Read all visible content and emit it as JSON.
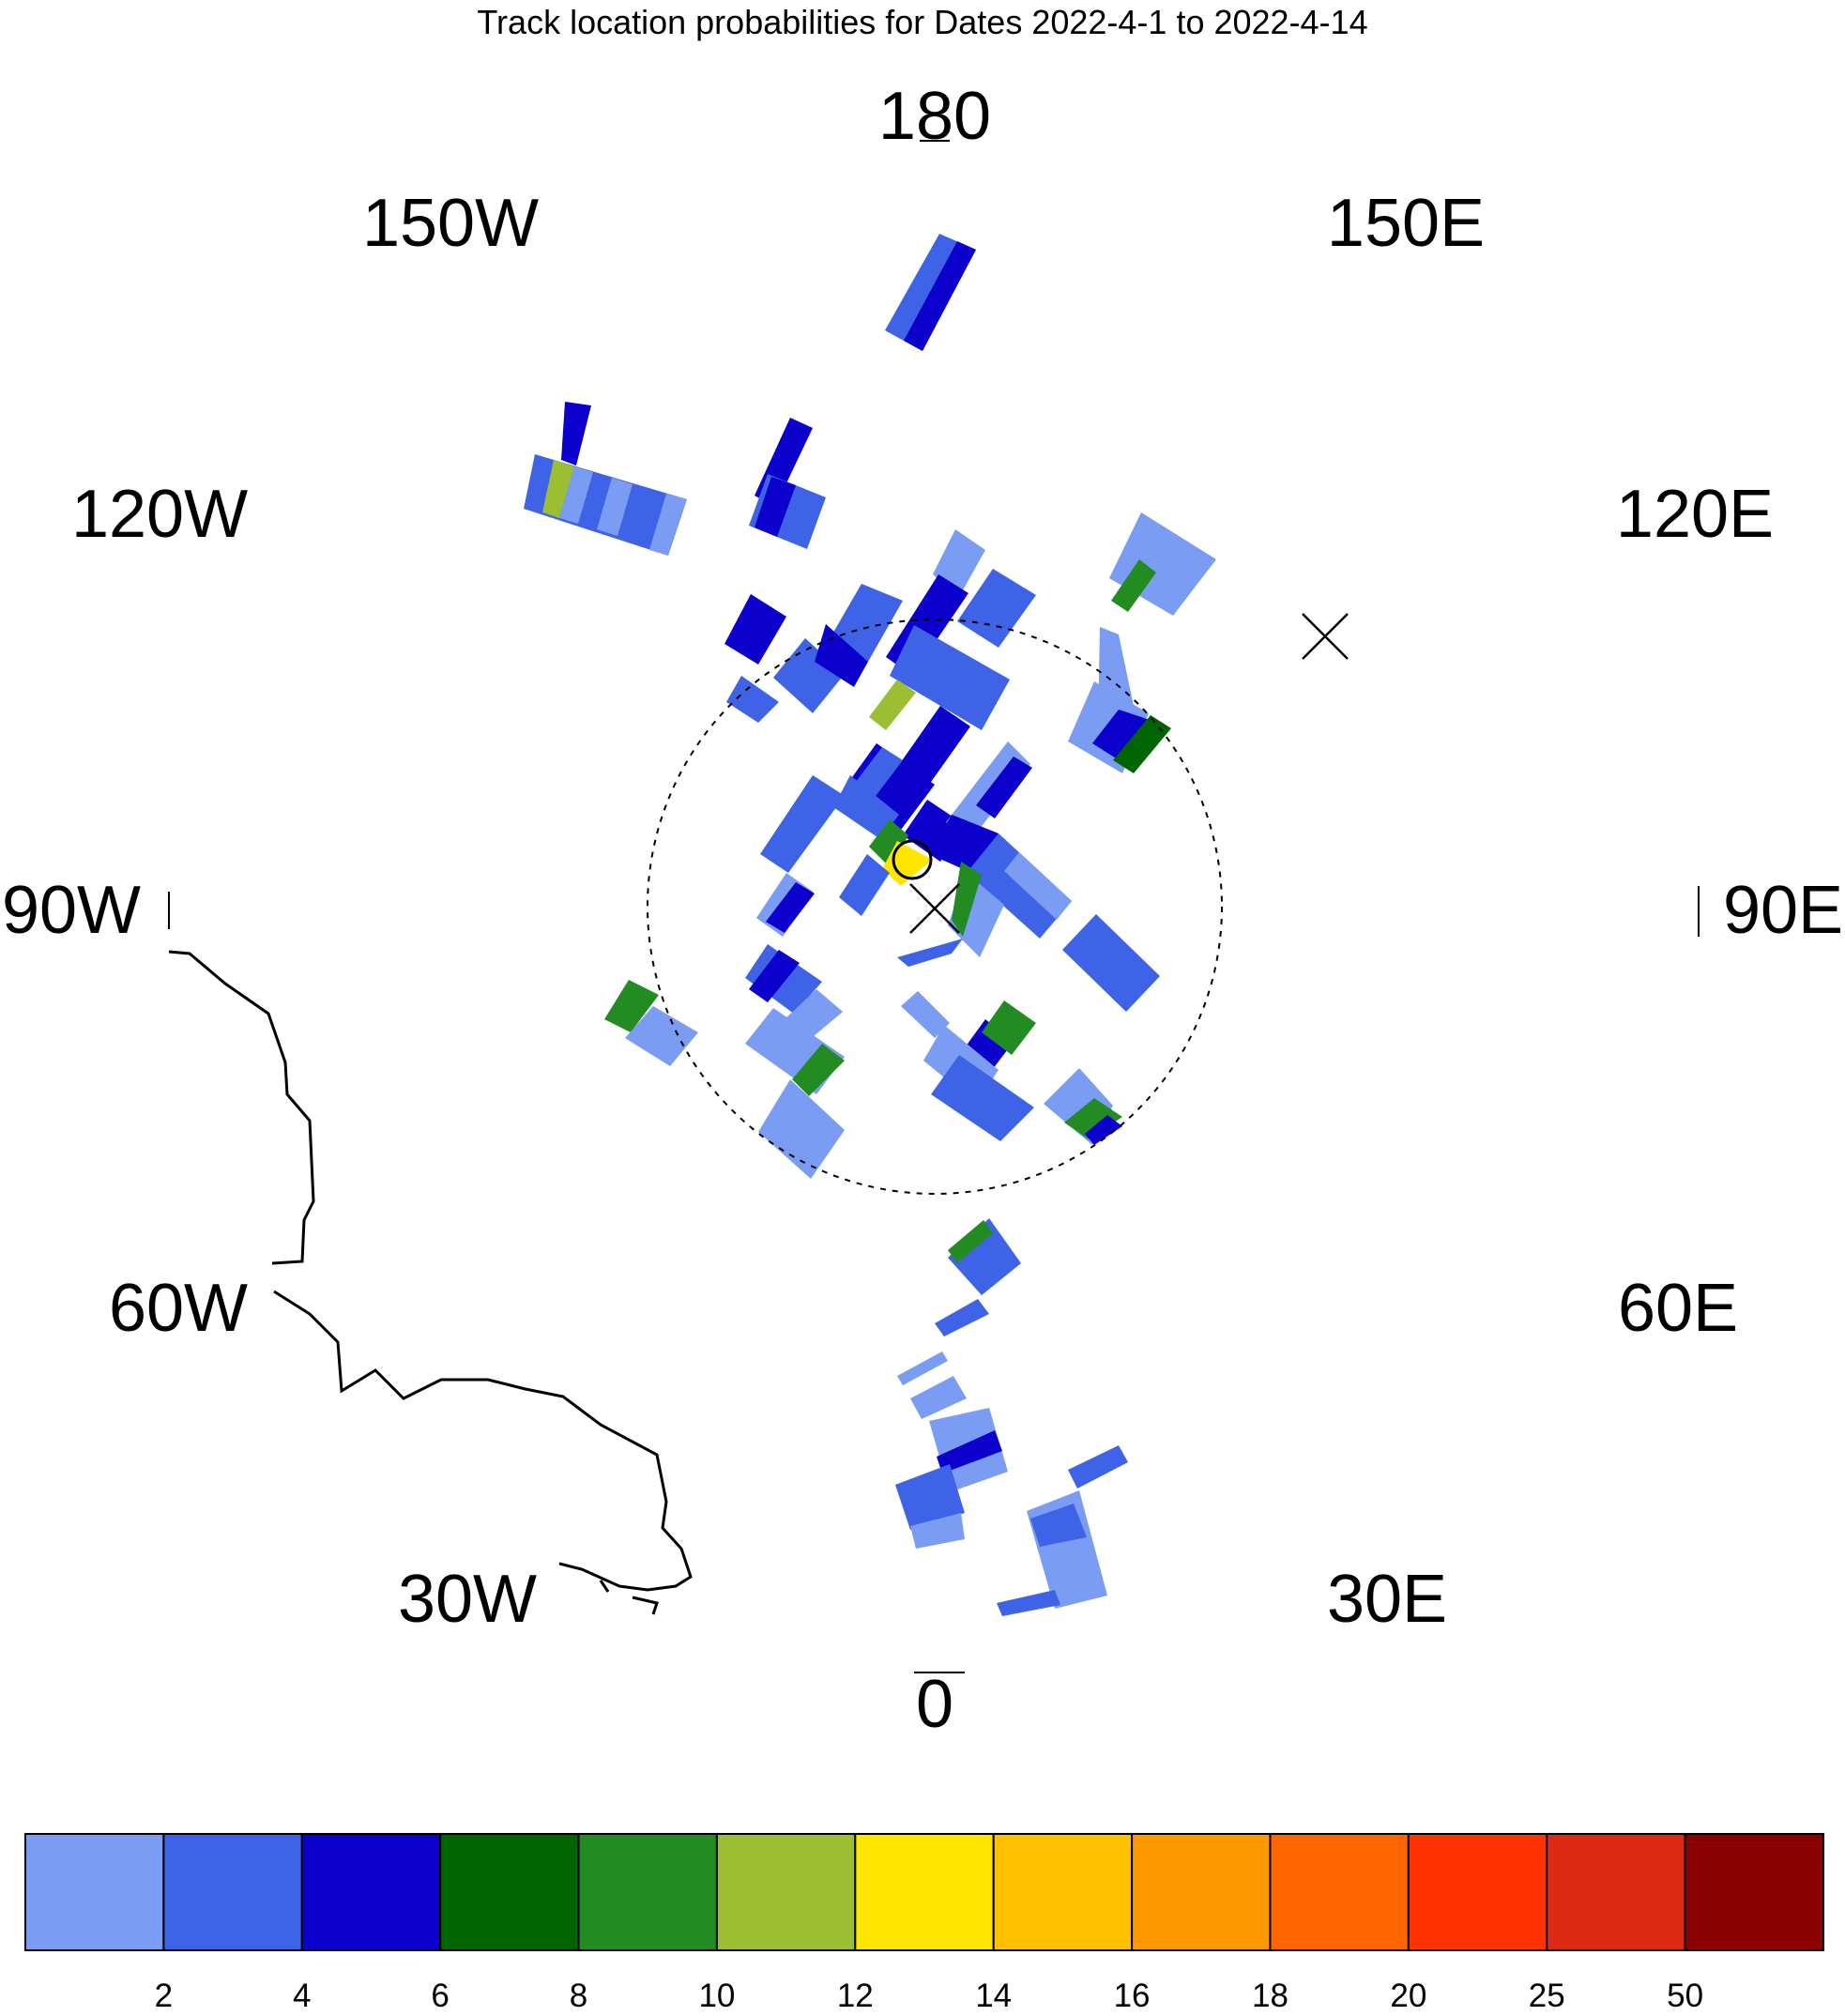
{
  "title": "Track location probabilities for Dates 2022-4-1 to 2022-4-14",
  "map": {
    "projection": "north-polar-stereographic",
    "center": "North Pole",
    "dashed_circle": "latitude-ring",
    "markers": [
      {
        "name": "pole-cross",
        "symbol": "×"
      },
      {
        "name": "outer-cross",
        "symbol": "×"
      },
      {
        "name": "center-circle",
        "symbol": "○"
      }
    ]
  },
  "longitude_labels": {
    "lon_180": "180",
    "lon_150w": "150W",
    "lon_150e": "150E",
    "lon_120w": "120W",
    "lon_120e": "120E",
    "lon_90w": "90W",
    "lon_90e": "90E",
    "lon_60w": "60W",
    "lon_60e": "60E",
    "lon_30w": "30W",
    "lon_30e": "30E",
    "lon_0": "0"
  },
  "colorbar": {
    "colors": [
      "#7b9cf3",
      "#3e63e6",
      "#0b00cc",
      "#006400",
      "#228b22",
      "#9bbe33",
      "#ffe600",
      "#ffc000",
      "#ff9900",
      "#ff6600",
      "#ff3300",
      "#dd2a12",
      "#8b0000"
    ],
    "labels": [
      "2",
      "4",
      "6",
      "8",
      "10",
      "12",
      "14",
      "16",
      "18",
      "20",
      "25",
      "50"
    ]
  },
  "chart_data": {
    "type": "heatmap",
    "title": "Track location probabilities for Dates 2022-4-1 to 2022-4-14",
    "levels": [
      2,
      4,
      6,
      8,
      10,
      12,
      14,
      16,
      18,
      20,
      25,
      50
    ],
    "level_colors": [
      "#7b9cf3",
      "#3e63e6",
      "#0b00cc",
      "#006400",
      "#228b22",
      "#9bbe33",
      "#ffe600",
      "#ffc000",
      "#ff9900",
      "#ff6600",
      "#ff3300",
      "#dd2a12",
      "#8b0000"
    ],
    "max_probability_near": "North Pole",
    "max_probability_band": "12-14"
  }
}
